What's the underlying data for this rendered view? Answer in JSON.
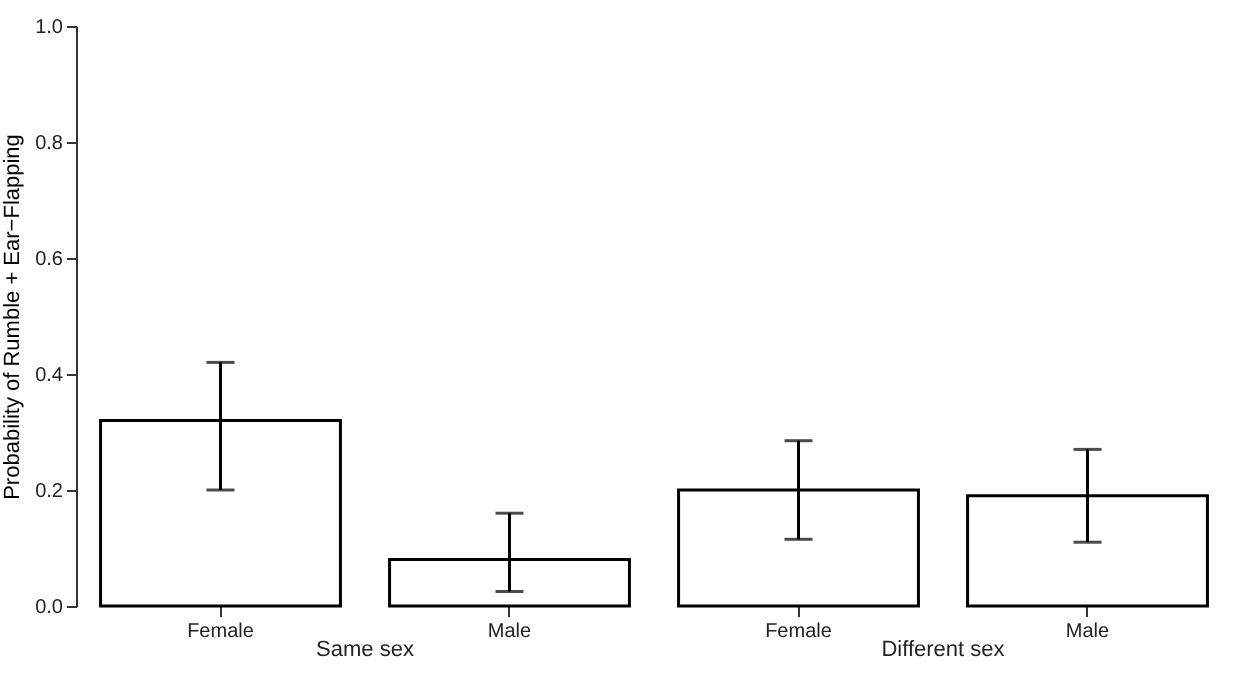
{
  "chart_data": {
    "type": "bar",
    "ylabel": "Probability of Rumble + Ear−Flapping",
    "categories": [
      "Female",
      "Male",
      "Female",
      "Male"
    ],
    "values": [
      0.32,
      0.08,
      0.2,
      0.19
    ],
    "errors": [
      [
        0.2,
        0.42
      ],
      [
        0.025,
        0.16
      ],
      [
        0.115,
        0.285
      ],
      [
        0.11,
        0.27
      ]
    ],
    "color": "#ffffff",
    "annotations": [
      "Same sex",
      "Different sex"
    ],
    "ylim": [
      0,
      1
    ],
    "yticks": [
      {
        "value": 0,
        "label": "0.0"
      },
      {
        "value": 0.2,
        "label": "0.2"
      },
      {
        "value": 0.4,
        "label": "0.4"
      },
      {
        "value": 0.6,
        "label": "0.6"
      },
      {
        "value": 0.8,
        "label": "0.8"
      },
      {
        "value": 1,
        "label": "1.0"
      }
    ],
    "grid": false
  }
}
